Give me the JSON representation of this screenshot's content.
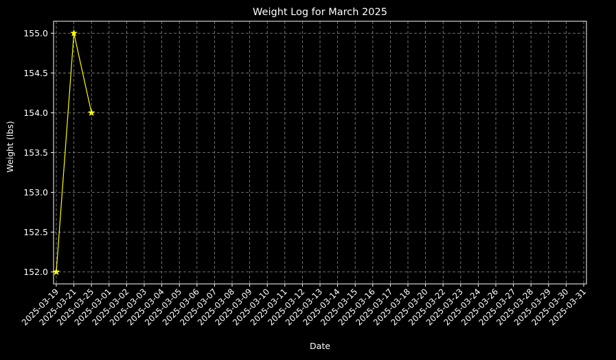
{
  "chart_data": {
    "type": "line",
    "title": "Weight Log for March 2025",
    "xlabel": "Date",
    "ylabel": "Weight (lbs)",
    "x_tick_labels": [
      "2025-03-19",
      "2025-03-21",
      "2025-03-25",
      "2025-03-01",
      "2025-03-02",
      "2025-03-03",
      "2025-03-04",
      "2025-03-05",
      "2025-03-06",
      "2025-03-07",
      "2025-03-08",
      "2025-03-09",
      "2025-03-10",
      "2025-03-11",
      "2025-03-12",
      "2025-03-13",
      "2025-03-14",
      "2025-03-15",
      "2025-03-16",
      "2025-03-17",
      "2025-03-18",
      "2025-03-20",
      "2025-03-22",
      "2025-03-23",
      "2025-03-24",
      "2025-03-26",
      "2025-03-27",
      "2025-03-28",
      "2025-03-29",
      "2025-03-30",
      "2025-03-31"
    ],
    "y_ticks": [
      152.0,
      152.5,
      153.0,
      153.5,
      154.0,
      154.5,
      155.0
    ],
    "y_tick_labels": [
      "152.0",
      "152.5",
      "153.0",
      "153.5",
      "154.0",
      "154.5",
      "155.0"
    ],
    "ylim": [
      151.85,
      155.15
    ],
    "series": [
      {
        "x": [
          "2025-03-19",
          "2025-03-21",
          "2025-03-25"
        ],
        "values": [
          152.0,
          155.0,
          154.0
        ],
        "color": "#ffff00",
        "marker": "star"
      }
    ],
    "grid": true,
    "grid_style": "dashed",
    "background": "#000000",
    "foreground": "#ffffff"
  }
}
